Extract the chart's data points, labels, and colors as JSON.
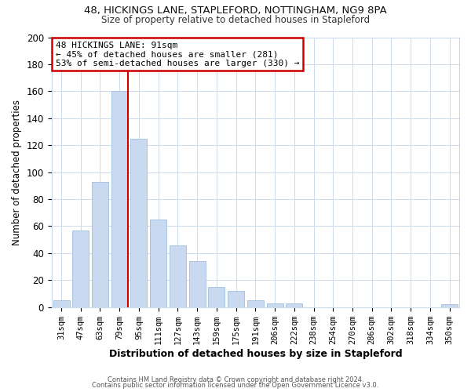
{
  "title_line1": "48, HICKINGS LANE, STAPLEFORD, NOTTINGHAM, NG9 8PA",
  "title_line2": "Size of property relative to detached houses in Stapleford",
  "xlabel": "Distribution of detached houses by size in Stapleford",
  "ylabel": "Number of detached properties",
  "bar_labels": [
    "31sqm",
    "47sqm",
    "63sqm",
    "79sqm",
    "95sqm",
    "111sqm",
    "127sqm",
    "143sqm",
    "159sqm",
    "175sqm",
    "191sqm",
    "206sqm",
    "222sqm",
    "238sqm",
    "254sqm",
    "270sqm",
    "286sqm",
    "302sqm",
    "318sqm",
    "334sqm",
    "350sqm"
  ],
  "bar_values": [
    5,
    57,
    93,
    160,
    125,
    65,
    46,
    34,
    15,
    12,
    5,
    3,
    3,
    0,
    0,
    0,
    0,
    0,
    0,
    0,
    2
  ],
  "bar_color": "#c8d9f0",
  "bar_edge_color": "#a0bfdf",
  "vline_color": "#cc0000",
  "annotation_text_line1": "48 HICKINGS LANE: 91sqm",
  "annotation_text_line2": "← 45% of detached houses are smaller (281)",
  "annotation_text_line3": "53% of semi-detached houses are larger (330) →",
  "ylim": [
    0,
    200
  ],
  "yticks": [
    0,
    20,
    40,
    60,
    80,
    100,
    120,
    140,
    160,
    180,
    200
  ],
  "footer_line1": "Contains HM Land Registry data © Crown copyright and database right 2024.",
  "footer_line2": "Contains public sector information licensed under the Open Government Licence v3.0.",
  "background_color": "#ffffff",
  "grid_color": "#ccdaeb"
}
